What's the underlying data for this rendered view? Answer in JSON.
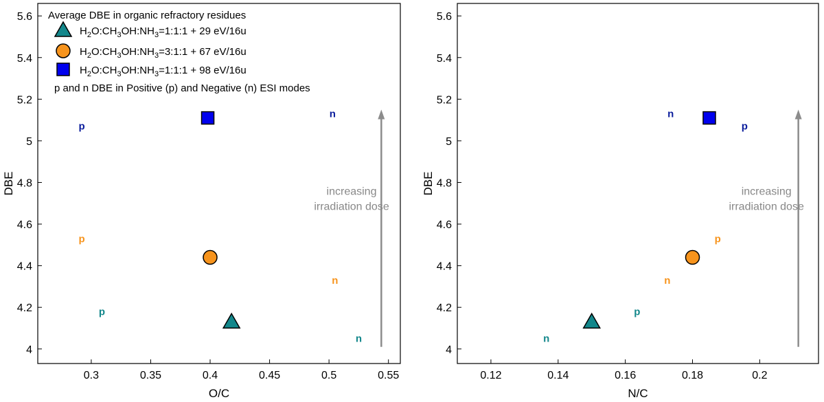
{
  "colors": {
    "teal": "#13878b",
    "orange": "#f7941d",
    "blue": "#0000ee",
    "navy": "#0a1c9c",
    "arrow": "#8c8c8c"
  },
  "legend": {
    "title": "Average DBE in organic refractory residues",
    "entries": [
      {
        "marker": "triangle",
        "color": "teal",
        "prefix": "H",
        "s1": "2",
        "mid": "O:CH",
        "s2": "3",
        "mid2": "OH:NH",
        "s3": "3",
        "suffix": "=1:1:1 + 29 eV/16u"
      },
      {
        "marker": "circle",
        "color": "orange",
        "prefix": "H",
        "s1": "2",
        "mid": "O:CH",
        "s2": "3",
        "mid2": "OH:NH",
        "s3": "3",
        "suffix": "=3:1:1 + 67 eV/16u"
      },
      {
        "marker": "square",
        "color": "blue",
        "prefix": "H",
        "s1": "2",
        "mid": "O:CH",
        "s2": "3",
        "mid2": "OH:NH",
        "s3": "3",
        "suffix": "=1:1:1 + 98 eV/16u"
      }
    ],
    "note": "p and n DBE in Positive (p) and Negative (n) ESI modes"
  },
  "annotation": {
    "line1": "increasing",
    "line2": "irradiation dose"
  },
  "chart_data": [
    {
      "type": "scatter",
      "xlabel": "O/C",
      "ylabel": "DBE",
      "xlim": [
        0.255,
        0.56
      ],
      "ylim": [
        3.93,
        5.66
      ],
      "xticks": [
        0.3,
        0.35,
        0.4,
        0.45,
        0.5,
        0.55
      ],
      "xtick_labels": [
        "0.3",
        "0.35",
        "0.4",
        "0.45",
        "0.5",
        "0.55"
      ],
      "yticks": [
        4,
        4.2,
        4.4,
        4.6,
        4.8,
        5,
        5.2,
        5.4,
        5.6
      ],
      "ytick_labels": [
        "4",
        "4.2",
        "4.4",
        "4.6",
        "4.8",
        "5",
        "5.2",
        "5.4",
        "5.6"
      ],
      "markers": [
        {
          "name": "29 eV/16u",
          "shape": "triangle",
          "color": "teal",
          "x": 0.418,
          "y": 4.13
        },
        {
          "name": "67 eV/16u",
          "shape": "circle",
          "color": "orange",
          "x": 0.4,
          "y": 4.44
        },
        {
          "name": "98 eV/16u",
          "shape": "square",
          "color": "blue",
          "x": 0.398,
          "y": 5.11
        }
      ],
      "letters": [
        {
          "text": "p",
          "color": "navy",
          "x": 0.292,
          "y": 5.07
        },
        {
          "text": "n",
          "color": "navy",
          "x": 0.503,
          "y": 5.13
        },
        {
          "text": "p",
          "color": "orange",
          "x": 0.292,
          "y": 4.53
        },
        {
          "text": "n",
          "color": "orange",
          "x": 0.505,
          "y": 4.33
        },
        {
          "text": "p",
          "color": "teal",
          "x": 0.309,
          "y": 4.18
        },
        {
          "text": "n",
          "color": "teal",
          "x": 0.525,
          "y": 4.05
        }
      ],
      "arrow": {
        "x": 0.544,
        "y_from": 4.01,
        "y_to": 5.15
      },
      "annotation_at": {
        "x": 0.519,
        "y": 4.74
      }
    },
    {
      "type": "scatter",
      "xlabel": "N/C",
      "ylabel": "DBE",
      "xlim": [
        0.11,
        0.2175
      ],
      "ylim": [
        3.93,
        5.66
      ],
      "xticks": [
        0.12,
        0.14,
        0.16,
        0.18,
        0.2
      ],
      "xtick_labels": [
        "0.12",
        "0.14",
        "0.16",
        "0.18",
        "0.2"
      ],
      "yticks": [
        4,
        4.2,
        4.4,
        4.6,
        4.8,
        5,
        5.2,
        5.4,
        5.6
      ],
      "ytick_labels": [
        "4",
        "4.2",
        "4.4",
        "4.6",
        "4.8",
        "5",
        "5.2",
        "5.4",
        "5.6"
      ],
      "markers": [
        {
          "name": "29 eV/16u",
          "shape": "triangle",
          "color": "teal",
          "x": 0.15,
          "y": 4.13
        },
        {
          "name": "67 eV/16u",
          "shape": "circle",
          "color": "orange",
          "x": 0.18,
          "y": 4.44
        },
        {
          "name": "98 eV/16u",
          "shape": "square",
          "color": "blue",
          "x": 0.185,
          "y": 5.11
        }
      ],
      "letters": [
        {
          "text": "n",
          "color": "navy",
          "x": 0.1735,
          "y": 5.13
        },
        {
          "text": "p",
          "color": "navy",
          "x": 0.1955,
          "y": 5.07
        },
        {
          "text": "p",
          "color": "orange",
          "x": 0.1875,
          "y": 4.53
        },
        {
          "text": "n",
          "color": "orange",
          "x": 0.1725,
          "y": 4.33
        },
        {
          "text": "p",
          "color": "teal",
          "x": 0.1635,
          "y": 4.18
        },
        {
          "text": "n",
          "color": "teal",
          "x": 0.1365,
          "y": 4.05
        }
      ],
      "arrow": {
        "x": 0.2115,
        "y_from": 4.01,
        "y_to": 5.15
      },
      "annotation_at": {
        "x": 0.202,
        "y": 4.74
      }
    }
  ]
}
